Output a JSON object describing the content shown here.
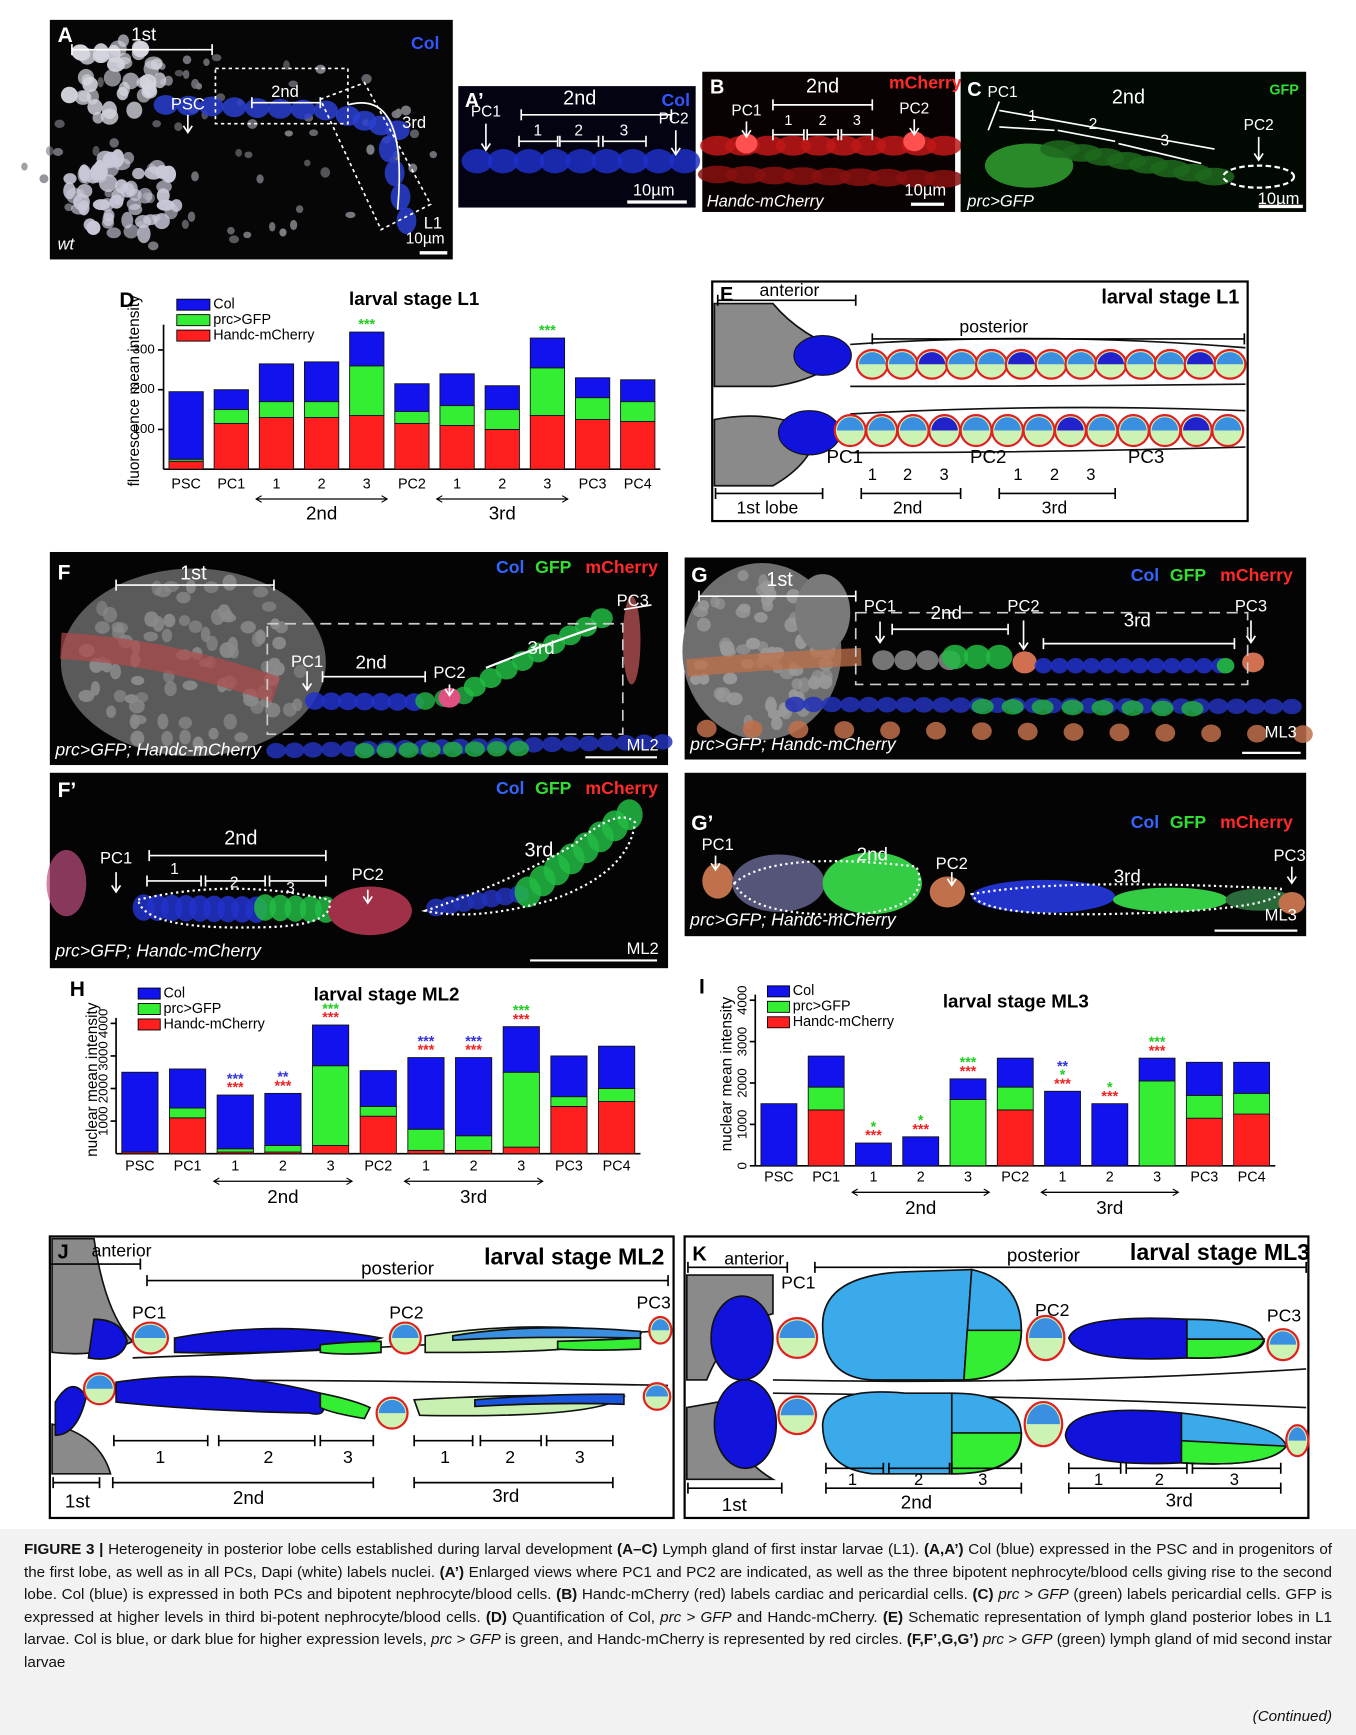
{
  "panel_a": {
    "letter": "A",
    "channel": "Col",
    "lobe1": "1st",
    "psc": "PSC",
    "lobe2": "2nd",
    "lobe3": "3rd",
    "genotype": "wt",
    "stage": "L1",
    "scale": "10µm"
  },
  "panel_a2": {
    "letter": "A’",
    "pc1": "PC1",
    "lobe2": "2nd",
    "channel": "Col",
    "pc2": "PC2",
    "cells": [
      "1",
      "2",
      "3"
    ],
    "scale": "10µm"
  },
  "panel_b": {
    "letter": "B",
    "lobe2": "2nd",
    "channel": "mCherry",
    "pc1": "PC1",
    "pc2": "PC2",
    "cells": [
      "1",
      "2",
      "3"
    ],
    "genotype": "Handc-mCherry",
    "scale": "10µm"
  },
  "panel_c": {
    "letter": "C",
    "pc1": "PC1",
    "lobe2": "2nd",
    "channel": "GFP",
    "pc2": "PC2",
    "cells": [
      "1",
      "2",
      "3"
    ],
    "genotype": "prc>GFP",
    "scale": "10µm"
  },
  "panel_e": {
    "letter": "E",
    "title": "larval stage L1",
    "anterior": "anterior",
    "posterior": "posterior",
    "pcs": [
      "PC1",
      "PC2",
      "PC3"
    ],
    "cells": [
      "1",
      "2",
      "3",
      "1",
      "2",
      "3"
    ],
    "lobes": [
      "1st lobe",
      "2nd",
      "3rd"
    ]
  },
  "panel_f": {
    "letter": "F",
    "lobe1": "1st",
    "channels": [
      "Col",
      "GFP",
      "mCherry"
    ],
    "pc3": "PC3",
    "pc1": "PC1",
    "lobe2": "2nd",
    "pc2": "PC2",
    "lobe3": "3rd",
    "genotype": "prc>GFP; Handc-mCherry",
    "stage": "ML2"
  },
  "panel_g": {
    "letter": "G",
    "lobe1": "1st",
    "channels": [
      "Col",
      "GFP",
      "mCherry"
    ],
    "pc1": "PC1",
    "lobe2": "2nd",
    "pc2": "PC2",
    "lobe3": "3rd",
    "pc3": "PC3",
    "genotype": "prc>GFP; Handc-mCherry",
    "stage": "ML3"
  },
  "panel_f2": {
    "letter": "F’",
    "channels": [
      "Col",
      "GFP",
      "mCherry"
    ],
    "pc1": "PC1",
    "lobe2": "2nd",
    "cells": [
      "1",
      "2",
      "3"
    ],
    "pc2": "PC2",
    "lobe3": "3rd",
    "genotype": "prc>GFP; Handc-mCherry",
    "stage": "ML2"
  },
  "panel_g2": {
    "letter": "G’",
    "channels": [
      "Col",
      "GFP",
      "mCherry"
    ],
    "pc1": "PC1",
    "lobe2": "2nd",
    "pc2": "PC2",
    "lobe3": "3rd",
    "pc3": "PC3",
    "genotype": "prc>GFP; Handc-mCherry",
    "stage": "ML3"
  },
  "panel_j": {
    "letter": "J",
    "title": "larval stage ML2",
    "anterior": "anterior",
    "posterior": "posterior",
    "pcs": [
      "PC1",
      "PC2",
      "PC3"
    ],
    "cells": [
      "1",
      "2",
      "3",
      "1",
      "2",
      "3"
    ],
    "lobes": [
      "1st",
      "2nd",
      "3rd"
    ]
  },
  "panel_k": {
    "letter": "K",
    "title": "larval stage ML3",
    "anterior": "anterior",
    "posterior": "posterior",
    "pcs": [
      "PC1",
      "PC2",
      "PC3"
    ],
    "cells": [
      "1",
      "2",
      "3",
      "1",
      "2",
      "3"
    ],
    "lobes": [
      "1st",
      "2nd",
      "3rd"
    ]
  },
  "chart_data": [
    {
      "type": "bar",
      "letter": "D",
      "title": "larval stage L1",
      "ylabel": "fluorescence mean intensity",
      "categories": [
        "PSC",
        "PC1",
        "1",
        "2",
        "3",
        "PC2",
        "1",
        "2",
        "3",
        "PC3",
        "PC4"
      ],
      "groups": [
        {
          "label": "2nd",
          "from": 2,
          "to": 4
        },
        {
          "label": "3rd",
          "from": 6,
          "to": 8
        }
      ],
      "series": [
        {
          "name": "Col",
          "color": "#1212ee",
          "values": [
            170,
            50,
            95,
            100,
            85,
            70,
            80,
            60,
            75,
            50,
            55
          ]
        },
        {
          "name": "prc>GFP",
          "color": "#33ee33",
          "values": [
            5,
            35,
            40,
            40,
            125,
            30,
            50,
            50,
            120,
            55,
            50
          ]
        },
        {
          "name": "Handc-mCherry",
          "color": "#ff1f1f",
          "values": [
            20,
            115,
            130,
            130,
            135,
            115,
            110,
            100,
            135,
            125,
            120
          ]
        }
      ],
      "ylim": [
        0,
        350
      ],
      "yticks": [
        100,
        200,
        300
      ],
      "annotations": [
        {
          "category": 4,
          "marks": [
            {
              "text": "***",
              "color": "#22cc22"
            }
          ]
        },
        {
          "category": 8,
          "marks": [
            {
              "text": "***",
              "color": "#22cc22"
            }
          ]
        }
      ]
    },
    {
      "type": "bar",
      "letter": "H",
      "title": "larval stage ML2",
      "ylabel": "nuclear mean intensity",
      "categories": [
        "PSC",
        "PC1",
        "1",
        "2",
        "3",
        "PC2",
        "1",
        "2",
        "3",
        "PC3",
        "PC4"
      ],
      "groups": [
        {
          "label": "2nd",
          "from": 2,
          "to": 4
        },
        {
          "label": "3rd",
          "from": 6,
          "to": 8
        }
      ],
      "series": [
        {
          "name": "Col",
          "color": "#1212ee",
          "values": [
            2450,
            1200,
            1650,
            1600,
            1250,
            1100,
            2200,
            2400,
            1400,
            1250,
            1300
          ]
        },
        {
          "name": "prc>GFP",
          "color": "#33ee33",
          "values": [
            0,
            300,
            100,
            200,
            2450,
            300,
            650,
            450,
            2300,
            300,
            400
          ]
        },
        {
          "name": "Handc-mCherry",
          "color": "#ff1f1f",
          "values": [
            50,
            1100,
            50,
            50,
            250,
            1150,
            100,
            100,
            200,
            1450,
            1600
          ]
        }
      ],
      "ylim": [
        0,
        4000
      ],
      "yticks": [
        1000,
        2000,
        3000,
        4000
      ],
      "annotations": [
        {
          "category": 2,
          "marks": [
            {
              "text": "***",
              "color": "#3333dd"
            },
            {
              "text": "***",
              "color": "#ee2222"
            }
          ]
        },
        {
          "category": 3,
          "marks": [
            {
              "text": "**",
              "color": "#3333dd"
            },
            {
              "text": "***",
              "color": "#ee2222"
            }
          ]
        },
        {
          "category": 4,
          "marks": [
            {
              "text": "***",
              "color": "#22cc22"
            },
            {
              "text": "***",
              "color": "#ee2222"
            }
          ]
        },
        {
          "category": 6,
          "marks": [
            {
              "text": "***",
              "color": "#3333dd"
            },
            {
              "text": "***",
              "color": "#ee2222"
            }
          ]
        },
        {
          "category": 7,
          "marks": [
            {
              "text": "***",
              "color": "#3333dd"
            },
            {
              "text": "***",
              "color": "#ee2222"
            }
          ]
        },
        {
          "category": 8,
          "marks": [
            {
              "text": "***",
              "color": "#22cc22"
            },
            {
              "text": "***",
              "color": "#ee2222"
            }
          ]
        }
      ]
    },
    {
      "type": "bar",
      "letter": "I",
      "title": "larval stage ML3",
      "ylabel": "nuclear mean intensity",
      "categories": [
        "PSC",
        "PC1",
        "1",
        "2",
        "3",
        "PC2",
        "1",
        "2",
        "3",
        "PC3",
        "PC4"
      ],
      "groups": [
        {
          "label": "2nd",
          "from": 2,
          "to": 4
        },
        {
          "label": "3rd",
          "from": 6,
          "to": 8
        }
      ],
      "series": [
        {
          "name": "Col",
          "color": "#1212ee",
          "values": [
            1500,
            750,
            550,
            700,
            500,
            700,
            1800,
            1500,
            550,
            800,
            750
          ]
        },
        {
          "name": "prc>GFP",
          "color": "#33ee33",
          "values": [
            0,
            550,
            0,
            0,
            1600,
            550,
            0,
            0,
            2050,
            550,
            500
          ]
        },
        {
          "name": "Handc-mCherry",
          "color": "#ff1f1f",
          "values": [
            0,
            1350,
            0,
            0,
            0,
            1350,
            0,
            0,
            0,
            1150,
            1250
          ]
        }
      ],
      "ylim": [
        0,
        4000
      ],
      "yticks": [
        0,
        1000,
        2000,
        3000,
        4000
      ],
      "annotations": [
        {
          "category": 2,
          "marks": [
            {
              "text": "*",
              "color": "#22cc22"
            },
            {
              "text": "***",
              "color": "#ee2222"
            }
          ]
        },
        {
          "category": 3,
          "marks": [
            {
              "text": "*",
              "color": "#22cc22"
            },
            {
              "text": "***",
              "color": "#ee2222"
            }
          ]
        },
        {
          "category": 4,
          "marks": [
            {
              "text": "***",
              "color": "#22cc22"
            },
            {
              "text": "***",
              "color": "#ee2222"
            }
          ]
        },
        {
          "category": 6,
          "marks": [
            {
              "text": "**",
              "color": "#3333dd"
            },
            {
              "text": "*",
              "color": "#22cc22"
            },
            {
              "text": "***",
              "color": "#ee2222"
            }
          ]
        },
        {
          "category": 7,
          "marks": [
            {
              "text": "*",
              "color": "#22cc22"
            },
            {
              "text": "***",
              "color": "#ee2222"
            }
          ]
        },
        {
          "category": 8,
          "marks": [
            {
              "text": "***",
              "color": "#22cc22"
            },
            {
              "text": "***",
              "color": "#ee2222"
            }
          ]
        }
      ]
    }
  ],
  "caption": {
    "runs": [
      {
        "text": "FIGURE 3 | ",
        "style": "bold"
      },
      {
        "text": "Heterogeneity in posterior lobe cells established during larval development ",
        "style": "normal"
      },
      {
        "text": "(A–C)",
        "style": "bold"
      },
      {
        "text": " Lymph gland of first instar larvae (L1). ",
        "style": "normal"
      },
      {
        "text": "(A,A’)",
        "style": "bold"
      },
      {
        "text": " Col (blue) expressed in the PSC and in progenitors of the first lobe, as well as in all PCs, Dapi (white) labels nuclei. ",
        "style": "normal"
      },
      {
        "text": "(A’)",
        "style": "bold"
      },
      {
        "text": " Enlarged views where PC1 and PC2 are indicated, as well as the three bipotent nephrocyte/blood cells giving rise to the second lobe. Col (blue) is expressed in both PCs and bipotent nephrocyte/blood cells. ",
        "style": "normal"
      },
      {
        "text": "(B)",
        "style": "bold"
      },
      {
        "text": " Handc-mCherry (red) labels cardiac and pericardial cells. ",
        "style": "normal"
      },
      {
        "text": "(C)",
        "style": "bold"
      },
      {
        "text": "prc > GFP",
        "style": "italic"
      },
      {
        "text": " (green) labels pericardial cells. GFP is expressed at higher levels in third bi-potent nephrocyte/blood cells. ",
        "style": "normal"
      },
      {
        "text": "(D)",
        "style": "bold"
      },
      {
        "text": " Quantification of Col, ",
        "style": "normal"
      },
      {
        "text": "prc > GFP",
        "style": "italic"
      },
      {
        "text": " and Handc-mCherry. ",
        "style": "normal"
      },
      {
        "text": "(E)",
        "style": "bold"
      },
      {
        "text": " Schematic representation of lymph gland posterior lobes in L1 larvae. Col is blue, or dark blue for higher expression levels, ",
        "style": "normal"
      },
      {
        "text": "prc > GFP",
        "style": "italic"
      },
      {
        "text": " is green, and Handc-mCherry is represented by red circles. ",
        "style": "normal"
      },
      {
        "text": "(F,F’,G,G’)",
        "style": "bold"
      },
      {
        "text": "prc > GFP",
        "style": "italic"
      },
      {
        "text": " (green) lymph gland of mid second instar larvae",
        "style": "normal"
      }
    ],
    "continued": "(Continued)"
  }
}
